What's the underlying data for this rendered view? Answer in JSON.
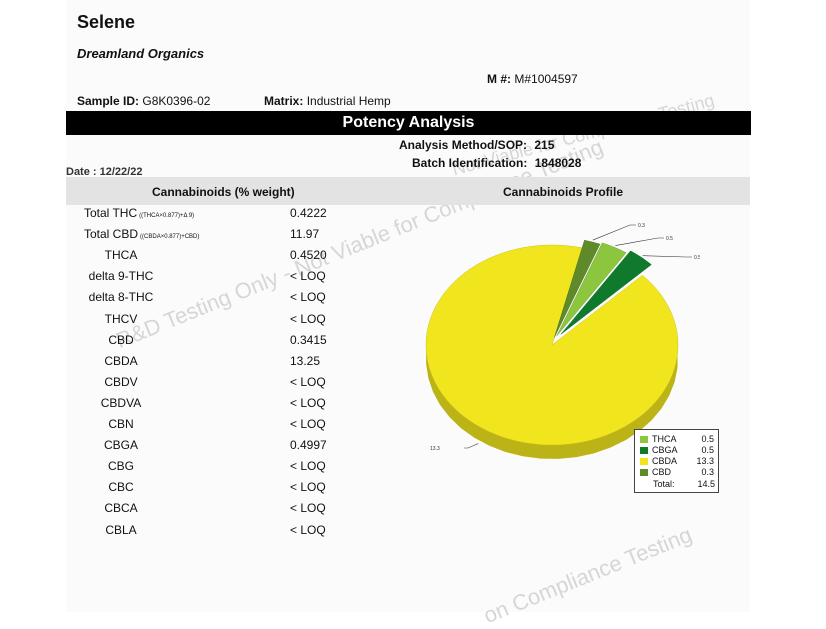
{
  "header": {
    "client_name": "Selene",
    "company": "Dreamland Organics",
    "m_number_label": "M #:",
    "m_number_value": "M#1004597",
    "sample_id_label": "Sample ID:",
    "sample_id_value": "G8K0396-02",
    "matrix_label": "Matrix:",
    "matrix_value": "Industrial Hemp"
  },
  "section": {
    "title": "Potency Analysis",
    "method_label": "Analysis Method/SOP:",
    "method_value": "215",
    "batch_label": "Batch Identification:",
    "batch_value": "1848028",
    "date": "Date : 12/22/22"
  },
  "table": {
    "col_cannabinoids": "Cannabinoids (% weight)",
    "col_profile": "Cannabinoids Profile",
    "rows": [
      {
        "name": "Total THC",
        "sub": "((THCA×0.877)+Δ 9)",
        "value": "0.4222"
      },
      {
        "name": "Total CBD",
        "sub": "((CBDA×0.877)+CBD)",
        "value": "11.97"
      },
      {
        "name": "THCA",
        "sub": "",
        "value": "0.4520"
      },
      {
        "name": "delta 9-THC",
        "sub": "",
        "value": "< LOQ"
      },
      {
        "name": "delta 8-THC",
        "sub": "",
        "value": "< LOQ"
      },
      {
        "name": "THCV",
        "sub": "",
        "value": "< LOQ"
      },
      {
        "name": "CBD",
        "sub": "",
        "value": "0.3415"
      },
      {
        "name": "CBDA",
        "sub": "",
        "value": "13.25"
      },
      {
        "name": "CBDV",
        "sub": "",
        "value": "< LOQ"
      },
      {
        "name": "CBDVA",
        "sub": "",
        "value": "< LOQ"
      },
      {
        "name": "CBN",
        "sub": "",
        "value": "< LOQ"
      },
      {
        "name": "CBGA",
        "sub": "",
        "value": "0.4997"
      },
      {
        "name": "CBG",
        "sub": "",
        "value": "< LOQ"
      },
      {
        "name": "CBC",
        "sub": "",
        "value": "< LOQ"
      },
      {
        "name": "CBCA",
        "sub": "",
        "value": "< LOQ"
      },
      {
        "name": "CBLA",
        "sub": "",
        "value": "< LOQ"
      }
    ]
  },
  "chart_data": {
    "type": "pie",
    "categories": [
      "CBDA",
      "THCA",
      "CBGA",
      "CBD"
    ],
    "values": [
      13.3,
      0.5,
      0.5,
      0.3
    ],
    "slice_labels": [
      "13.3",
      "0.5",
      "0.5",
      "0.3"
    ],
    "colors": [
      "#f1e61e",
      "#8cc63e",
      "#107a2c",
      "#5f8a2a"
    ],
    "legend_placement": "bottom-right",
    "legend": [
      {
        "name": "THCA",
        "value": "0.5",
        "color": "#8cc63e"
      },
      {
        "name": "CBGA",
        "value": "0.5",
        "color": "#107a2c"
      },
      {
        "name": "CBDA",
        "value": "13.3",
        "color": "#f1e61e"
      },
      {
        "name": "CBD",
        "value": "0.3",
        "color": "#5f8a2a"
      }
    ],
    "total_label": "Total:",
    "total_value": "14.5"
  },
  "watermarks": [
    "R&D Testing Only - Not Viable for Compliance Testing",
    "Not Viable for Compliance Testing",
    "on Compliance Testing"
  ]
}
